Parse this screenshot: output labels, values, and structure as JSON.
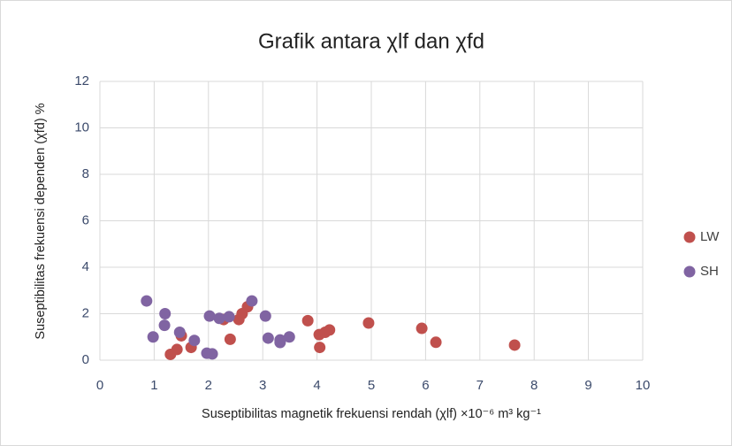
{
  "chart_data": {
    "type": "scatter",
    "title": "Grafik antara χlf dan χfd",
    "xlabel": "Suseptibilitas magnetik frekuensi rendah (χlf) ×10⁻⁶ m³ kg⁻¹",
    "ylabel": "Suseptibilitas frekuensi dependen (χfd) %",
    "xlim": [
      0,
      10
    ],
    "xticks": [
      0,
      1,
      2,
      3,
      4,
      5,
      6,
      7,
      8,
      9,
      10
    ],
    "ylim": [
      0,
      12
    ],
    "yticks": [
      0,
      2,
      4,
      6,
      8,
      10,
      12
    ],
    "grid": true,
    "legend": "right",
    "series": [
      {
        "name": "LW",
        "color": "#c0504d",
        "x": [
          1.3,
          1.42,
          1.5,
          1.68,
          2.28,
          2.4,
          2.56,
          2.62,
          2.72,
          3.83,
          4.04,
          4.05,
          4.15,
          4.23,
          4.95,
          5.93,
          6.19,
          7.64
        ],
        "values": [
          0.25,
          0.46,
          1.05,
          0.55,
          1.75,
          0.9,
          1.75,
          2.0,
          2.3,
          1.7,
          1.1,
          0.55,
          1.2,
          1.3,
          1.6,
          1.37,
          0.77,
          0.65
        ]
      },
      {
        "name": "SH",
        "color": "#8064a2",
        "x": [
          0.86,
          0.98,
          1.2,
          1.19,
          1.47,
          1.74,
          1.97,
          2.07,
          2.02,
          2.2,
          2.38,
          2.8,
          3.05,
          3.1,
          3.32,
          3.32,
          3.49
        ],
        "values": [
          2.55,
          1.0,
          2.0,
          1.5,
          1.2,
          0.85,
          0.3,
          0.27,
          1.9,
          1.8,
          1.87,
          2.55,
          1.9,
          0.95,
          0.76,
          0.87,
          1.0
        ]
      }
    ]
  }
}
